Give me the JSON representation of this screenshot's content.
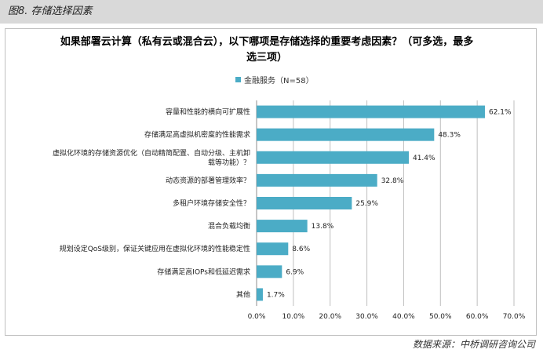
{
  "figure_header": "图8. 存储选择因素",
  "source": "数据来源：中桥调研咨询公司",
  "chart_data": {
    "type": "bar",
    "orientation": "horizontal",
    "title": "如果部署云计算（私有云或混合云），以下哪项是存储选择的重要考虑因素？（可多选，最多选三项）",
    "title_lines": [
      "如果部署云计算（私有云或混合云），以下哪项是存储选择的重要考虑因素？（可多选，最多",
      "选三项）"
    ],
    "series": [
      {
        "name": "金融服务（N=58）",
        "color": "#4bacc6"
      }
    ],
    "categories": [
      [
        "容量和性能的横向可扩展性"
      ],
      [
        "存储满足高虚拟机密度的性能需求"
      ],
      [
        "虚拟化环境的存储资源优化（自动精简配置、自动分级、主机卸",
        "载等功能）？"
      ],
      [
        "动态资源的部署管理效率？"
      ],
      [
        "多租户环境存储安全性？"
      ],
      [
        "混合负载均衡"
      ],
      [
        "规划设定QoS级别，保证关键应用在虚拟化环境的性能稳定性"
      ],
      [
        "存储满足高IOPs和低延迟需求"
      ],
      [
        "其他"
      ]
    ],
    "values": [
      62.1,
      48.3,
      41.4,
      32.8,
      25.9,
      13.8,
      8.6,
      6.9,
      1.7
    ],
    "value_labels": [
      "62.1%",
      "48.3%",
      "41.4%",
      "32.8%",
      "25.9%",
      "13.8%",
      "8.6%",
      "6.9%",
      "1.7%"
    ],
    "xlim": [
      0,
      70
    ],
    "x_ticks": [
      "0.0%",
      "10.0%",
      "20.0%",
      "30.0%",
      "40.0%",
      "50.0%",
      "60.0%",
      "70.0%"
    ],
    "grid": true,
    "legend_position": "top"
  }
}
